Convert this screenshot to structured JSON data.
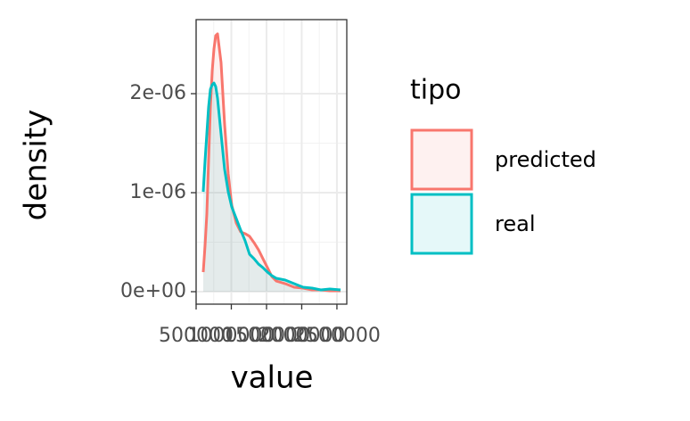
{
  "chart_data": {
    "type": "density",
    "xlabel": "value",
    "ylabel": "density",
    "legend_title": "tipo",
    "x": [
      601000,
      627000,
      652000,
      677000,
      703000,
      728000,
      753000,
      778000,
      804000,
      854000,
      905000,
      956000,
      1006000,
      1070000,
      1133000,
      1196000,
      1259000,
      1323000,
      1386000,
      1449000,
      1513000,
      1576000,
      1639000,
      1766000,
      1892000,
      2019000,
      2146000,
      2272000,
      2399000,
      2551000
    ],
    "series": [
      {
        "name": "predicted",
        "color": "#F8766D",
        "values": [
          1.98e-07,
          4.68e-07,
          7.84e-07,
          1.324e-06,
          1.865e-06,
          2.225e-06,
          2.45e-06,
          2.586e-06,
          2.604e-06,
          2.315e-06,
          1.685e-06,
          1.189e-06,
          8.74e-07,
          6.94e-07,
          6.04e-07,
          5.86e-07,
          5.59e-07,
          4.95e-07,
          4.23e-07,
          3.33e-07,
          2.43e-07,
          1.53e-07,
          1.08e-07,
          8.1e-08,
          4.5e-08,
          3.6e-08,
          1.8e-08,
          1.8e-08,
          9e-09,
          9e-09
        ]
      },
      {
        "name": "real",
        "color": "#00BFC4",
        "values": [
          1.009e-06,
          1.324e-06,
          1.595e-06,
          1.865e-06,
          2.045e-06,
          2.09e-06,
          2.108e-06,
          2.072e-06,
          1.955e-06,
          1.595e-06,
          1.234e-06,
          1.009e-06,
          8.56e-07,
          7.39e-07,
          6.22e-07,
          5.14e-07,
          3.78e-07,
          3.33e-07,
          2.79e-07,
          2.43e-07,
          1.98e-07,
          1.62e-07,
          1.35e-07,
          1.17e-07,
          8.1e-08,
          4.5e-08,
          3.6e-08,
          1.8e-08,
          2.7e-08,
          1.8e-08
        ]
      }
    ],
    "xlim": [
      500000,
      2640000
    ],
    "xticks": [
      500000,
      1000000,
      1500000,
      2000000,
      2500000
    ],
    "ylim": [
      -1.26e-07,
      2.748e-06
    ],
    "yticks": [
      {
        "value": 0,
        "label": "0e+00"
      },
      {
        "value": 1e-06,
        "label": "1e-06"
      },
      {
        "value": 2e-06,
        "label": "2e-06"
      }
    ],
    "grid": true
  }
}
